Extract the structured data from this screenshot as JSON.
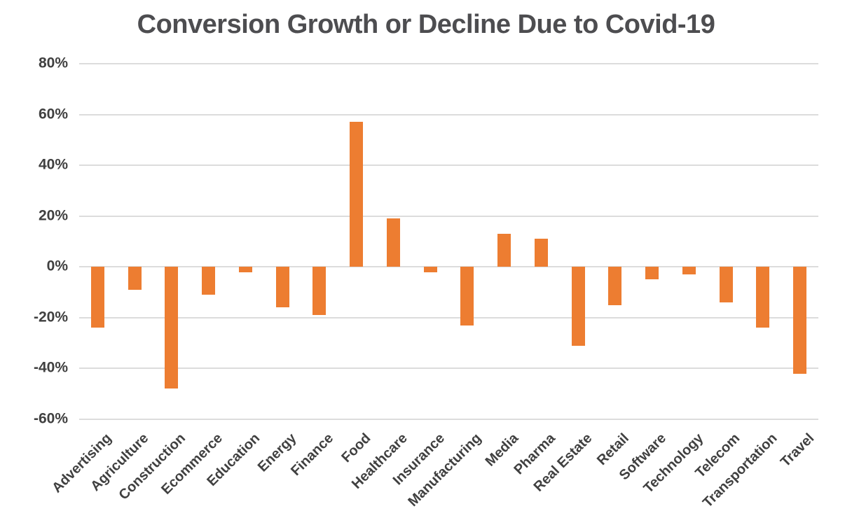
{
  "chart_data": {
    "type": "bar",
    "title": "Conversion Growth or Decline Due to Covid-19",
    "categories": [
      "Advertising",
      "Agriculture",
      "Construction",
      "Ecommerce",
      "Education",
      "Energy",
      "Finance",
      "Food",
      "Healthcare",
      "Insurance",
      "Manufacturing",
      "Media",
      "Pharma",
      "Real Estate",
      "Retail",
      "Software",
      "Technology",
      "Telecom",
      "Transportation",
      "Travel"
    ],
    "values": [
      -24,
      -9,
      -48,
      -11,
      -2,
      -16,
      -19,
      57,
      19,
      -2,
      -23,
      13,
      11,
      -31,
      -15,
      -5,
      -3,
      -14,
      -24,
      -42
    ],
    "unit": "%",
    "xlabel": "",
    "ylabel": "",
    "ylim": [
      -60,
      80
    ],
    "ytick_step": 20,
    "ytick_labels": [
      "80%",
      "60%",
      "40%",
      "20%",
      "0%",
      "-20%",
      "-40%",
      "-60%"
    ],
    "grid": true,
    "legend_position": "none",
    "bar_color": "#ED7D31",
    "gridline_color": "#dcdcdc",
    "title_color": "#4d4d50",
    "axis_text_color": "#404040",
    "background_color": "#ffffff"
  }
}
